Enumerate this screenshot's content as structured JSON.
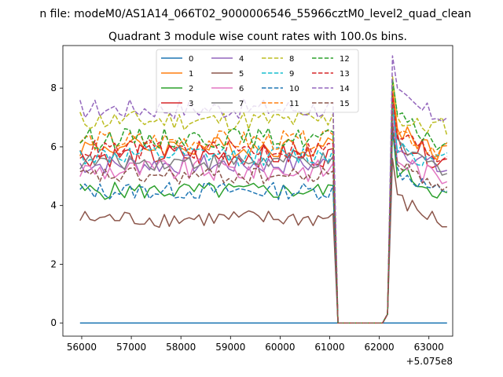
{
  "chart_data": {
    "type": "line",
    "suptitle": "n file: modeM0/AS1A14_066T02_9000006546_55966cztM0_level2_quad_clean",
    "title": "Quadrant 3 module wise count rates with 100.0s bins.",
    "xlabel": "",
    "ylabel": "",
    "xlim": [
      55620,
      63480
    ],
    "ylim": [
      -0.45,
      9.45
    ],
    "x_offset_label": "+5.075e8",
    "x_ticks": [
      56000,
      57000,
      58000,
      59000,
      60000,
      61000,
      62000,
      63000
    ],
    "x_tick_labels": [
      "56000",
      "57000",
      "58000",
      "59000",
      "60000",
      "61000",
      "62000",
      "63000"
    ],
    "y_ticks": [
      0,
      2,
      4,
      6,
      8
    ],
    "y_tick_labels": [
      "0",
      "2",
      "4",
      "6",
      "8"
    ],
    "legend": {
      "position": "top-center",
      "columns": 4
    },
    "grid": false,
    "x": {
      "start": 55966,
      "step": 100,
      "count": 75
    },
    "gap": {
      "start_index": 52,
      "end_index": 61,
      "note": "count rate drops to 0 between 61166 and 61966"
    },
    "series": [
      {
        "name": "0",
        "color": "#1f77b4",
        "dash": false,
        "base": 0.0,
        "amp": 0.0,
        "post_base": 0.0
      },
      {
        "name": "1",
        "color": "#ff7f0e",
        "dash": false,
        "base": 6.0,
        "amp": 0.35,
        "post_base": 6.6
      },
      {
        "name": "2",
        "color": "#2ca02c",
        "dash": false,
        "base": 4.5,
        "amp": 0.3,
        "post_base": 5.2
      },
      {
        "name": "3",
        "color": "#d62728",
        "dash": false,
        "base": 5.7,
        "amp": 0.4,
        "post_base": 6.3
      },
      {
        "name": "4",
        "color": "#9467bd",
        "dash": false,
        "base": 5.4,
        "amp": 0.35,
        "post_base": 6.0
      },
      {
        "name": "5",
        "color": "#8c564b",
        "dash": false,
        "base": 3.55,
        "amp": 0.3,
        "post_base": 4.2
      },
      {
        "name": "6",
        "color": "#e377c2",
        "dash": false,
        "base": 5.2,
        "amp": 0.4,
        "post_base": 5.6
      },
      {
        "name": "7",
        "color": "#7f7f7f",
        "dash": false,
        "base": 5.5,
        "amp": 0.3,
        "post_base": 6.0
      },
      {
        "name": "8",
        "color": "#bcbd22",
        "dash": true,
        "base": 6.9,
        "amp": 0.35,
        "post_base": 7.0
      },
      {
        "name": "9",
        "color": "#17becf",
        "dash": true,
        "base": 5.7,
        "amp": 0.35,
        "post_base": 6.1
      },
      {
        "name": "10",
        "color": "#1f77b4",
        "dash": true,
        "base": 4.5,
        "amp": 0.3,
        "post_base": 5.2
      },
      {
        "name": "11",
        "color": "#ff7f0e",
        "dash": true,
        "base": 6.2,
        "amp": 0.35,
        "post_base": 6.6
      },
      {
        "name": "12",
        "color": "#2ca02c",
        "dash": true,
        "base": 6.3,
        "amp": 0.35,
        "post_base": 6.9
      },
      {
        "name": "13",
        "color": "#d62728",
        "dash": true,
        "base": 5.9,
        "amp": 0.35,
        "post_base": 6.4
      },
      {
        "name": "14",
        "color": "#9467bd",
        "dash": true,
        "base": 7.3,
        "amp": 0.35,
        "post_base": 7.7
      },
      {
        "name": "15",
        "color": "#8c564b",
        "dash": true,
        "base": 5.0,
        "amp": 0.3,
        "post_base": 5.4
      }
    ]
  }
}
